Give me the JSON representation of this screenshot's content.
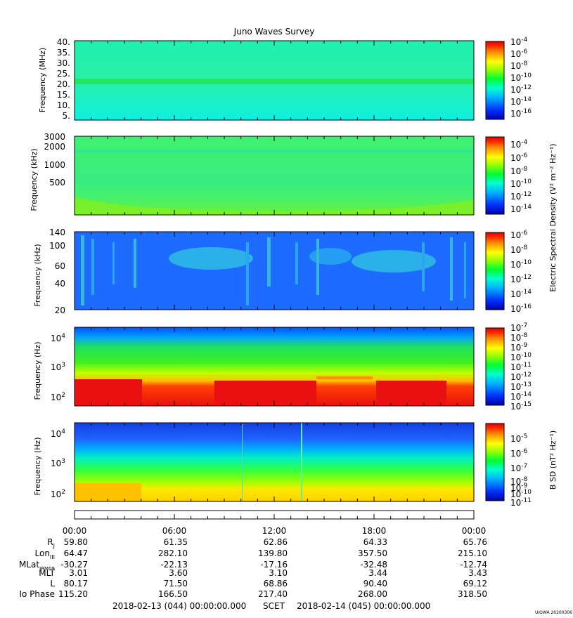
{
  "title": "Juno Waves Survey",
  "footer_tag": "UIOWA 20200306",
  "panels": [
    {
      "ylabel": "Frequency (MHz)",
      "yticks": [
        "40.",
        "35.",
        "30.",
        "25.",
        "20.",
        "15.",
        "10.",
        "5."
      ],
      "colorbar_ticks": [
        {
          "base": "10",
          "exp": "-4"
        },
        {
          "base": "10",
          "exp": "-6"
        },
        {
          "base": "10",
          "exp": "-8"
        },
        {
          "base": "10",
          "exp": "-10"
        },
        {
          "base": "10",
          "exp": "-12"
        },
        {
          "base": "10",
          "exp": "-14"
        },
        {
          "base": "10",
          "exp": "-16"
        }
      ]
    },
    {
      "ylabel": "Frequency (kHz)",
      "yticks": [
        "3000",
        "2000",
        "1000",
        "500"
      ],
      "colorbar_ticks": [
        {
          "base": "10",
          "exp": "-4"
        },
        {
          "base": "10",
          "exp": "-6"
        },
        {
          "base": "10",
          "exp": "-8"
        },
        {
          "base": "10",
          "exp": "-10"
        },
        {
          "base": "10",
          "exp": "-12"
        },
        {
          "base": "10",
          "exp": "-14"
        }
      ]
    },
    {
      "ylabel": "Frequency (kHz)",
      "yticks": [
        "140",
        "100",
        "60",
        "40",
        "20"
      ],
      "colorbar_ticks": [
        {
          "base": "10",
          "exp": "-6"
        },
        {
          "base": "10",
          "exp": "-8"
        },
        {
          "base": "10",
          "exp": "-10"
        },
        {
          "base": "10",
          "exp": "-12"
        },
        {
          "base": "10",
          "exp": "-14"
        },
        {
          "base": "10",
          "exp": "-16"
        }
      ]
    },
    {
      "ylabel": "Frequency (Hz)",
      "yticks": [
        {
          "base": "10",
          "exp": "4"
        },
        {
          "base": "10",
          "exp": "3"
        },
        {
          "base": "10",
          "exp": "2"
        }
      ],
      "colorbar_ticks": [
        {
          "base": "10",
          "exp": "-7"
        },
        {
          "base": "10",
          "exp": "-8"
        },
        {
          "base": "10",
          "exp": "-9"
        },
        {
          "base": "10",
          "exp": "-10"
        },
        {
          "base": "10",
          "exp": "-11"
        },
        {
          "base": "10",
          "exp": "-12"
        },
        {
          "base": "10",
          "exp": "-13"
        },
        {
          "base": "10",
          "exp": "-14"
        },
        {
          "base": "10",
          "exp": "-15"
        }
      ]
    },
    {
      "ylabel": "Frequency (Hz)",
      "yticks": [
        {
          "base": "10",
          "exp": "4"
        },
        {
          "base": "10",
          "exp": "3"
        },
        {
          "base": "10",
          "exp": "2"
        }
      ],
      "colorbar_ticks": [
        {
          "base": "10",
          "exp": "-5"
        },
        {
          "base": "10",
          "exp": "-6"
        },
        {
          "base": "10",
          "exp": "-7"
        },
        {
          "base": "10",
          "exp": "-8"
        },
        {
          "base": "10",
          "exp": "-9"
        },
        {
          "base": "10",
          "exp": "-10"
        },
        {
          "base": "10",
          "exp": "-11"
        }
      ]
    }
  ],
  "colorbar_label_electric": "Electric Spectral Density (V² m⁻² Hz⁻¹)",
  "colorbar_label_magnetic": "B SD (nT² Hz⁻¹)",
  "colors": {
    "colormap": [
      "#0000a8",
      "#0030ff",
      "#00a8ff",
      "#00ffd0",
      "#00ff30",
      "#a0ff00",
      "#ffff00",
      "#ffa000",
      "#ff3000",
      "#e00000"
    ],
    "panel1_bg": "#28f0a8",
    "panel2_bg": "#38ee80",
    "panel3_bg": "#1e6cff",
    "panel4_bg": "#e01010",
    "panel5_bg": "#30ff60"
  },
  "time_axis": {
    "labels": [
      "00:00",
      "06:00",
      "12:00",
      "18:00",
      "00:00"
    ]
  },
  "ephemeris": {
    "rows": [
      {
        "label": "R",
        "sub": "J",
        "values": [
          "59.80",
          "61.35",
          "62.86",
          "64.33",
          "65.76"
        ]
      },
      {
        "label": "Lon",
        "sub": "III",
        "values": [
          "64.47",
          "282.10",
          "139.80",
          "357.50",
          "215.10"
        ]
      },
      {
        "label": "MLat",
        "sub": "JRM09",
        "values": [
          "-30.27",
          "-22.13",
          "-17.16",
          "-32.48",
          "-12.74"
        ]
      },
      {
        "label": "MLT",
        "sub": "",
        "values": [
          "3.01",
          "3.60",
          "3.10",
          "3.44",
          "3.43"
        ]
      },
      {
        "label": "L",
        "sub": "",
        "values": [
          "80.17",
          "71.50",
          "68.86",
          "90.40",
          "69.12"
        ]
      },
      {
        "label": "Io Phase",
        "sub": "",
        "values": [
          "115.20",
          "166.50",
          "217.40",
          "268.00",
          "318.50"
        ]
      }
    ]
  },
  "footer": {
    "start": "2018-02-13 (044) 00:00:00.000",
    "scet": "SCET",
    "end": "2018-02-14 (045) 00:00:00.000"
  },
  "chart_data": [
    {
      "type": "heatmap",
      "title": "Juno Waves Survey",
      "ylabel": "Frequency (MHz)",
      "ylim": [
        3,
        41
      ],
      "colorbar_range_log10": [
        -17,
        -4
      ],
      "notes_band": "enhanced emission line near 21 MHz"
    },
    {
      "type": "heatmap",
      "ylabel": "Frequency (kHz)",
      "ylim": [
        150,
        3000
      ],
      "colorbar_range_log10": [
        -15,
        -4
      ]
    },
    {
      "type": "heatmap",
      "ylabel": "Frequency (kHz)",
      "ylim": [
        20,
        140
      ],
      "colorbar_range_log10": [
        -16,
        -6
      ]
    },
    {
      "type": "heatmap",
      "ylabel": "Frequency (Hz)",
      "ylim": [
        50,
        20000
      ],
      "colorbar_range_log10": [
        -15,
        -7
      ]
    },
    {
      "type": "heatmap",
      "ylabel": "Frequency (Hz)",
      "ylim": [
        50,
        20000
      ],
      "colorbar_range_log10": [
        -11,
        -5
      ]
    }
  ]
}
